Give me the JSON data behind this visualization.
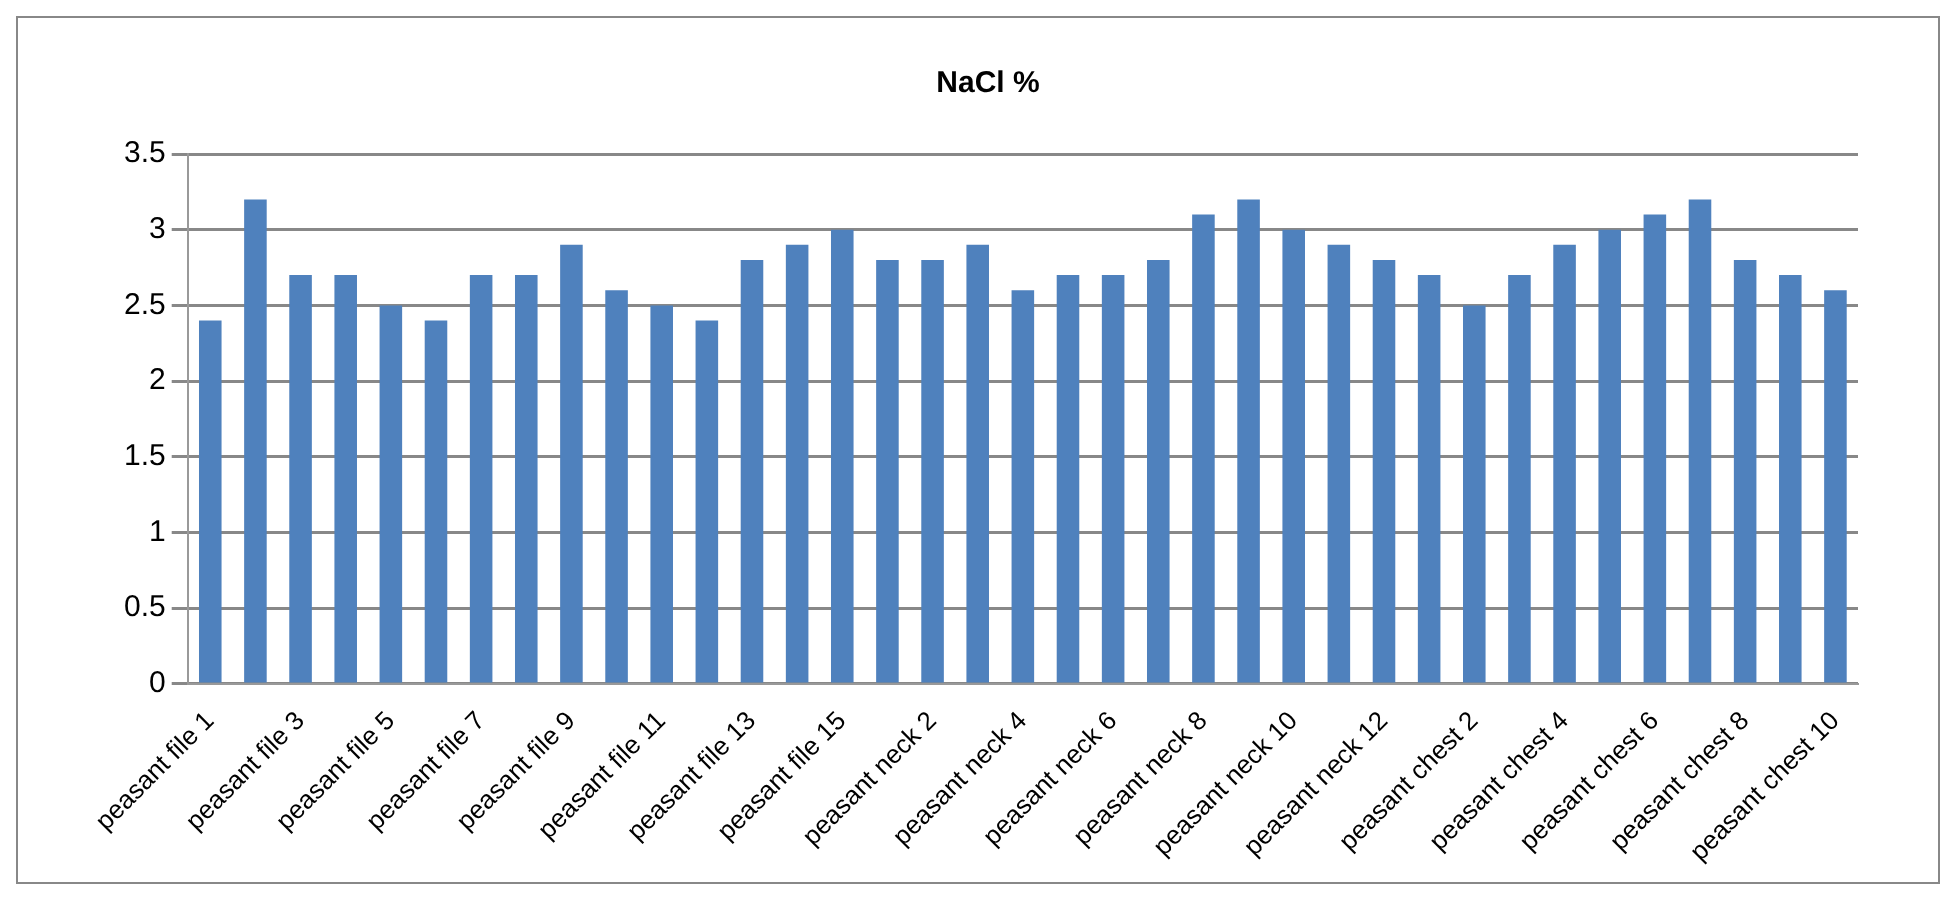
{
  "chart_data": {
    "type": "bar",
    "title": "NaCl %",
    "categories": [
      "peasant file 1",
      null,
      "peasant file 3",
      null,
      "peasant file 5",
      null,
      "peasant file 7",
      null,
      "peasant file 9",
      null,
      "peasant file 11",
      null,
      "peasant file 13",
      null,
      "peasant file 15",
      null,
      "peasant neck 2",
      null,
      "peasant neck 4",
      null,
      "peasant neck 6",
      null,
      "peasant neck 8",
      null,
      "peasant neck 10",
      null,
      "peasant neck 12",
      null,
      "peasant chest 2",
      null,
      "peasant chest 4",
      null,
      "peasant chest 6",
      null,
      "peasant chest 8",
      null,
      "peasant chest 10"
    ],
    "values": [
      2.4,
      3.2,
      2.7,
      2.7,
      2.5,
      2.4,
      2.7,
      2.7,
      2.9,
      2.6,
      2.5,
      2.4,
      2.8,
      2.9,
      3.0,
      2.8,
      2.8,
      2.9,
      2.6,
      2.7,
      2.7,
      2.8,
      3.1,
      3.2,
      3.0,
      2.9,
      2.8,
      2.7,
      2.5,
      2.7,
      2.9,
      3.0,
      3.1,
      3.2,
      2.8,
      2.7,
      2.6
    ],
    "color": "#4f81bd",
    "ylim": [
      0,
      3.5
    ],
    "yticks": [
      0,
      0.5,
      1,
      1.5,
      2,
      2.5,
      3,
      3.5
    ],
    "grid": "y",
    "legend": false
  }
}
